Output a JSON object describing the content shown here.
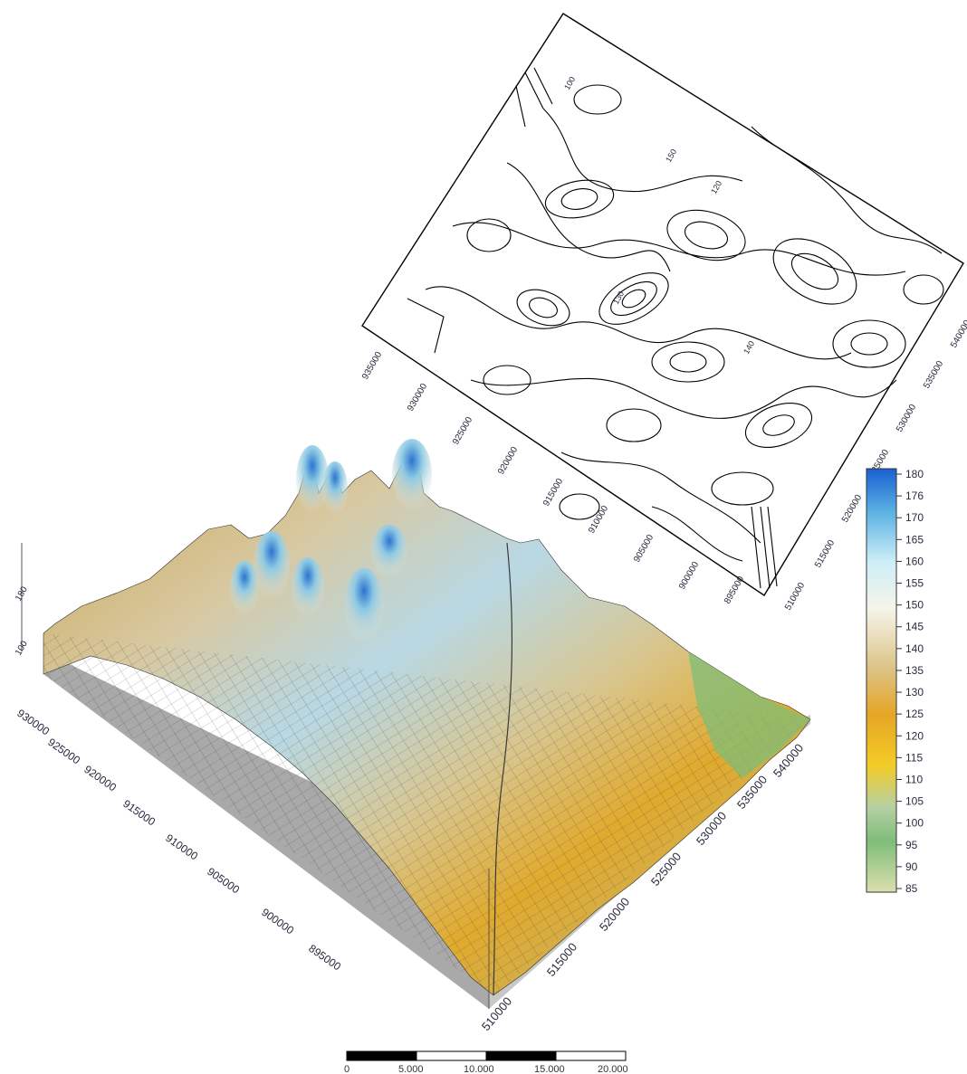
{
  "contour_map": {
    "x_axis_labels": [
      "540000",
      "535000",
      "530000",
      "525000",
      "520000",
      "515000",
      "510000"
    ],
    "y_axis_labels": [
      "935000",
      "930000",
      "925000",
      "920000",
      "915000",
      "910000",
      "905000",
      "900000",
      "895000"
    ],
    "contour_labels": [
      "100",
      "120",
      "130",
      "140",
      "150"
    ]
  },
  "surface_3d": {
    "y_axis_labels": [
      "930000",
      "925000",
      "920000",
      "915000",
      "910000",
      "905000",
      "900000",
      "895000"
    ],
    "x_axis_labels": [
      "510000",
      "515000",
      "520000",
      "525000",
      "530000",
      "535000",
      "540000"
    ],
    "z_axis_labels": [
      "180",
      "100"
    ]
  },
  "legend": {
    "labels": [
      "180",
      "176",
      "170",
      "165",
      "160",
      "155",
      "150",
      "145",
      "140",
      "135",
      "130",
      "125",
      "120",
      "115",
      "110",
      "105",
      "100",
      "95",
      "90",
      "85"
    ],
    "colors": [
      "#1d5fd0",
      "#3f94d8",
      "#6fc0e4",
      "#a5dcee",
      "#d8f2f6",
      "#eef4f0",
      "#f4f0e4",
      "#efe6cc",
      "#e6d4a8",
      "#dcc283",
      "#d2b162",
      "#e0a732",
      "#f0a418",
      "#f2c52c",
      "#d8d39a",
      "#a8cca0",
      "#7bbd77",
      "#8dc58a",
      "#b6d6a0",
      "#d6dfb2"
    ]
  },
  "scale_bar": {
    "labels": [
      "0",
      "5.000",
      "10.000",
      "15.000",
      "20.000"
    ]
  }
}
